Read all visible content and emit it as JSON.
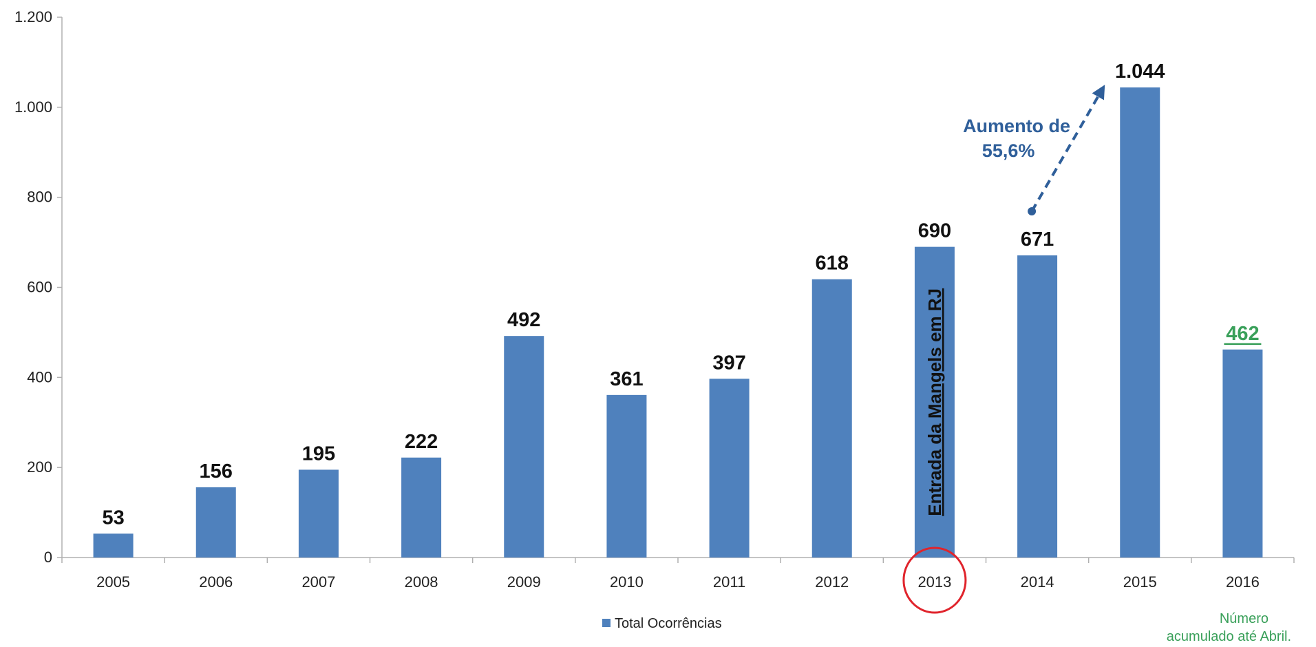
{
  "chart_data": {
    "type": "bar",
    "categories": [
      "2005",
      "2006",
      "2007",
      "2008",
      "2009",
      "2010",
      "2011",
      "2012",
      "2013",
      "2014",
      "2015",
      "2016"
    ],
    "series": [
      {
        "name": "Total Ocorrências",
        "values": [
          53,
          156,
          195,
          222,
          492,
          361,
          397,
          618,
          690,
          671,
          1044,
          462
        ],
        "value_labels": [
          "53",
          "156",
          "195",
          "222",
          "492",
          "361",
          "397",
          "618",
          "690",
          "671",
          "1.044",
          "462"
        ]
      }
    ],
    "ylim": [
      0,
      1200
    ],
    "yticks": [
      0,
      200,
      400,
      600,
      800,
      1000,
      1200
    ],
    "ytick_labels": [
      "0",
      "200",
      "400",
      "600",
      "800",
      "1.000",
      "1.200"
    ],
    "grid": false,
    "legend": {
      "position": "bottom-center",
      "label": "Total Ocorrências"
    },
    "colors": {
      "bar": "#4f81bd",
      "axis": "#b0b0b0",
      "annotation_blue": "#2f5f9a",
      "annotation_green": "#3aa05a",
      "highlight_circle": "#e0242c"
    },
    "annotations": {
      "increase_line1": "Aumento de",
      "increase_line2": "55,6%",
      "increase_from_category": "2014",
      "increase_to_category": "2015",
      "highlight_category": "2013",
      "vertical_text": "Entrada da Mangels em RJ",
      "highlight_label_category": "2016",
      "footnote_line1": "Número",
      "footnote_line2": "acumulado até Abril."
    }
  }
}
